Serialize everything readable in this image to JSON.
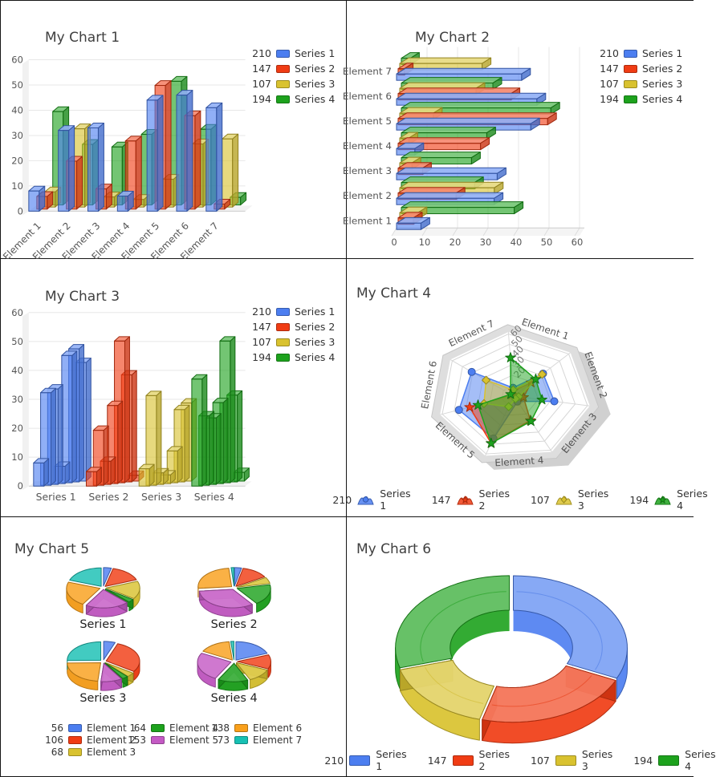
{
  "chart_data": [
    {
      "id": "chart1",
      "type": "bar",
      "subtype": "column-3d-clustered",
      "title": "My Chart 1",
      "categories": [
        "Element 1",
        "Element 2",
        "Element 3",
        "Element 4",
        "Element 5",
        "Element 6",
        "Element 7"
      ],
      "series": [
        {
          "name": "Series 1",
          "legend_value": 210,
          "color": "#4c7ef0",
          "values": [
            8,
            32,
            33,
            6,
            44,
            46,
            41
          ]
        },
        {
          "name": "Series 2",
          "legend_value": 147,
          "color": "#f03c14",
          "values": [
            5,
            19,
            8,
            27,
            49,
            37,
            2
          ]
        },
        {
          "name": "Series 3",
          "legend_value": 107,
          "color": "#d9c22f",
          "values": [
            6,
            31,
            4,
            3,
            11,
            25,
            27
          ]
        },
        {
          "name": "Series 4",
          "legend_value": 194,
          "color": "#1da21d",
          "values": [
            37,
            24,
            23,
            28,
            49,
            30,
            3
          ]
        }
      ],
      "ylabel": "",
      "xlabel": "",
      "ylim": [
        0,
        60
      ],
      "y_ticks": [
        0,
        10,
        20,
        30,
        40,
        50,
        60
      ],
      "grid": true,
      "legend_position": "right"
    },
    {
      "id": "chart2",
      "type": "bar",
      "subtype": "bar-3d-horizontal",
      "title": "My Chart 2",
      "categories": [
        "Element 1",
        "Element 2",
        "Element 3",
        "Element 4",
        "Element 5",
        "Element 6",
        "Element 7"
      ],
      "series": [
        {
          "name": "Series 1",
          "legend_value": 210,
          "color": "#4c7ef0",
          "values": [
            8,
            32,
            33,
            6,
            44,
            46,
            41
          ]
        },
        {
          "name": "Series 2",
          "legend_value": 147,
          "color": "#f03c14",
          "values": [
            5,
            19,
            8,
            27,
            49,
            37,
            2
          ]
        },
        {
          "name": "Series 3",
          "legend_value": 107,
          "color": "#d9c22f",
          "values": [
            6,
            31,
            4,
            3,
            11,
            25,
            27
          ]
        },
        {
          "name": "Series 4",
          "legend_value": 194,
          "color": "#1da21d",
          "values": [
            37,
            24,
            23,
            28,
            49,
            30,
            3
          ]
        }
      ],
      "xlim": [
        0,
        60
      ],
      "x_ticks": [
        0,
        10,
        20,
        30,
        40,
        50,
        60
      ],
      "grid": true,
      "legend_position": "right"
    },
    {
      "id": "chart3",
      "type": "bar",
      "subtype": "column-3d-grouped-by-series",
      "title": "My Chart 3",
      "categories": [
        "Series 1",
        "Series 2",
        "Series 3",
        "Series 4"
      ],
      "series": [
        {
          "name": "Series 1",
          "legend_value": 210,
          "color": "#4c7ef0",
          "values": [
            8,
            32,
            33,
            6,
            44,
            46,
            41
          ]
        },
        {
          "name": "Series 2",
          "legend_value": 147,
          "color": "#f03c14",
          "values": [
            5,
            19,
            8,
            27,
            49,
            37,
            2
          ]
        },
        {
          "name": "Series 3",
          "legend_value": 107,
          "color": "#d9c22f",
          "values": [
            6,
            31,
            4,
            3,
            11,
            25,
            27
          ]
        },
        {
          "name": "Series 4",
          "legend_value": 194,
          "color": "#1da21d",
          "values": [
            37,
            24,
            23,
            28,
            49,
            30,
            3
          ]
        }
      ],
      "ylim": [
        0,
        60
      ],
      "y_ticks": [
        0,
        10,
        20,
        30,
        40,
        50,
        60
      ],
      "grid": true,
      "legend_position": "right"
    },
    {
      "id": "chart4",
      "type": "radar",
      "subtype": "radar-3d",
      "title": "My Chart 4",
      "axes": [
        "Element 1",
        "Element 2",
        "Element 3",
        "Element 4",
        "Element 5",
        "Element 6",
        "Element 7"
      ],
      "r_ticks": [
        20,
        30,
        40,
        50,
        60
      ],
      "rlim": [
        0,
        60
      ],
      "series": [
        {
          "name": "Series 1",
          "legend_value": 210,
          "color": "#4c7ef0",
          "marker": "circle",
          "values": [
            8,
            32,
            33,
            6,
            44,
            46,
            41
          ]
        },
        {
          "name": "Series 2",
          "legend_value": 147,
          "color": "#f03c14",
          "marker": "star",
          "values": [
            5,
            19,
            8,
            27,
            49,
            37,
            2
          ]
        },
        {
          "name": "Series 3",
          "legend_value": 107,
          "color": "#d9c22f",
          "marker": "diamond",
          "values": [
            6,
            31,
            4,
            3,
            11,
            25,
            27
          ]
        },
        {
          "name": "Series 4",
          "legend_value": 194,
          "color": "#1da21d",
          "marker": "star",
          "values": [
            37,
            24,
            23,
            28,
            49,
            30,
            3
          ]
        }
      ],
      "legend_position": "bottom"
    },
    {
      "id": "chart5",
      "type": "pie",
      "subtype": "pie-3d-multiple",
      "title": "My Chart 5",
      "slices": [
        {
          "label": "Element 1",
          "legend_value": 56,
          "color": "#4c7ef0"
        },
        {
          "label": "Element 2",
          "legend_value": 106,
          "color": "#f03c14"
        },
        {
          "label": "Element 3",
          "legend_value": 68,
          "color": "#d9c22f"
        },
        {
          "label": "Element 4",
          "legend_value": 64,
          "color": "#1da21d"
        },
        {
          "label": "Element 5",
          "legend_value": 153,
          "color": "#c45ac4"
        },
        {
          "label": "Element 6",
          "legend_value": 138,
          "color": "#f9a01b"
        },
        {
          "label": "Element 7",
          "legend_value": 73,
          "color": "#17c0b3"
        }
      ],
      "pies": [
        {
          "label": "Series 1",
          "values": [
            8,
            32,
            33,
            6,
            44,
            46,
            41
          ]
        },
        {
          "label": "Series 2",
          "values": [
            5,
            19,
            8,
            27,
            49,
            37,
            2
          ]
        },
        {
          "label": "Series 3",
          "values": [
            6,
            31,
            4,
            3,
            11,
            25,
            27
          ]
        },
        {
          "label": "Series 4",
          "values": [
            37,
            24,
            23,
            28,
            49,
            30,
            3
          ]
        }
      ],
      "legend_position": "bottom"
    },
    {
      "id": "chart6",
      "type": "pie",
      "subtype": "donut-3d",
      "title": "My Chart 6",
      "slices": [
        {
          "label": "Series 1",
          "legend_value": 210,
          "value": 210,
          "color": "#4c7ef0"
        },
        {
          "label": "Series 2",
          "legend_value": 147,
          "value": 147,
          "color": "#f03c14"
        },
        {
          "label": "Series 3",
          "legend_value": 107,
          "value": 107,
          "color": "#d9c22f"
        },
        {
          "label": "Series 4",
          "legend_value": 194,
          "value": 194,
          "color": "#1da21d"
        }
      ],
      "legend_position": "bottom"
    }
  ],
  "styles": {
    "title_color": "#3f3f3f",
    "tick_color": "#555555",
    "legend_text_color": "#333333",
    "grid_color": "#e7e7e7",
    "wall_color": "#f1f1f1",
    "radar_band_color": "#dedede"
  }
}
